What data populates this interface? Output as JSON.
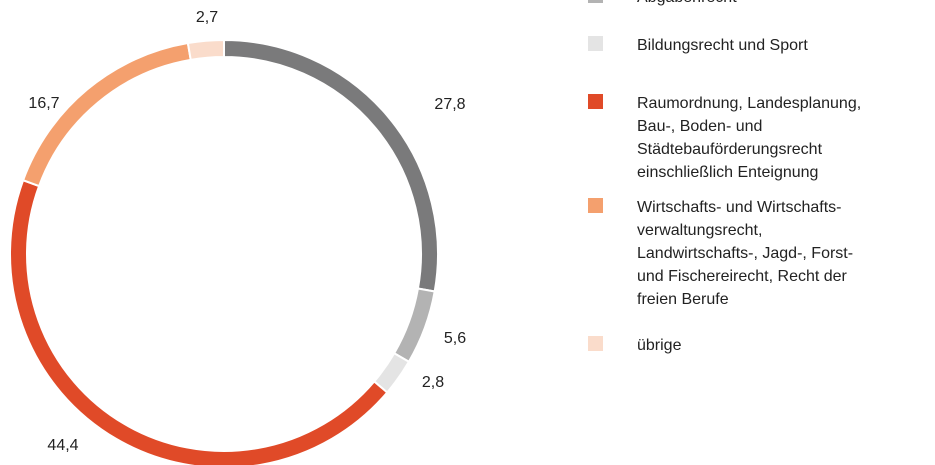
{
  "chart_data": {
    "type": "donut",
    "categories": [
      null,
      "Abgabenrecht",
      "Bildungsrecht und Sport",
      "Raumordnung, Landesplanung,\nBau-, Boden- und\nStädtebauförderungsrecht\neinschließlich Enteignung",
      "Wirtschafts- und Wirtschafts-\nverwaltungsrecht,\nLandwirtschafts-, Jagd-, Forst-\nund Fischereirecht, Recht der\nfreien Berufe",
      "übrige"
    ],
    "values": [
      27.8,
      5.6,
      2.8,
      44.4,
      16.7,
      2.7
    ],
    "value_labels": [
      "27,8",
      "5,6",
      "2,8",
      "44,4",
      "16,7",
      "2,7"
    ],
    "colors": [
      "#7a7a7b",
      "#b3b3b3",
      "#e4e4e4",
      "#e04a28",
      "#f4a06e",
      "#fadccb"
    ]
  }
}
